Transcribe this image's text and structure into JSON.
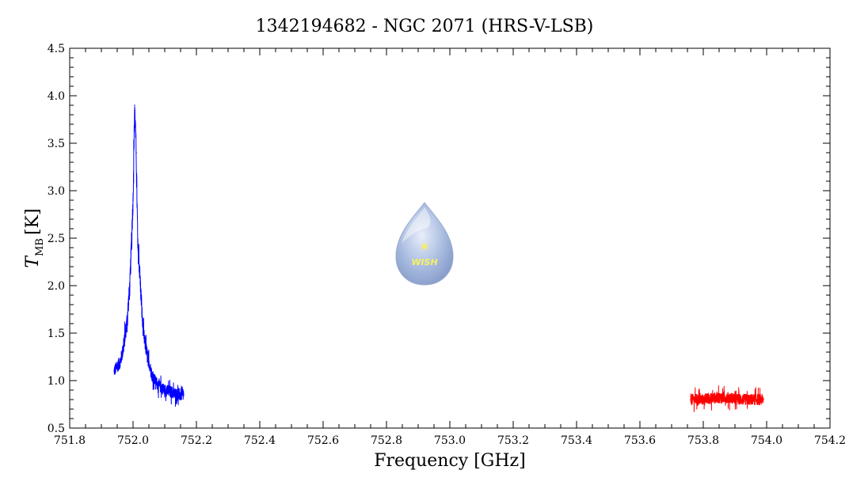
{
  "chart_data": {
    "type": "line",
    "title": "1342194682 - NGC 2071 (HRS-V-LSB)",
    "xlabel": "Frequency [GHz]",
    "ylabel": {
      "symbol": "T",
      "subscript": "MB",
      "unit": "[K]"
    },
    "xlim": [
      751.8,
      754.2
    ],
    "ylim": [
      0.5,
      4.5
    ],
    "x_ticks": [
      "751.8",
      "752.0",
      "752.2",
      "752.4",
      "752.6",
      "752.8",
      "753.0",
      "753.2",
      "753.4",
      "753.6",
      "753.8",
      "754.0",
      "754.2"
    ],
    "y_ticks": [
      "0.5",
      "1.0",
      "1.5",
      "2.0",
      "2.5",
      "3.0",
      "3.5",
      "4.0",
      "4.5"
    ],
    "grid": false,
    "series": [
      {
        "color": "#0000ff",
        "x": [
          751.94,
          751.96,
          751.97,
          751.98,
          751.99,
          752.0,
          752.005,
          752.01,
          752.015,
          752.02,
          752.025,
          752.03,
          752.035,
          752.04,
          752.05,
          752.06,
          752.07,
          752.08,
          752.1,
          752.12,
          752.14,
          752.16
        ],
        "y": [
          1.1,
          1.2,
          1.35,
          1.6,
          2.0,
          2.9,
          3.9,
          3.4,
          2.4,
          2.2,
          1.9,
          1.6,
          1.45,
          1.35,
          1.2,
          1.05,
          1.0,
          0.95,
          0.9,
          0.88,
          0.85,
          0.85
        ]
      },
      {
        "color": "#ff0000",
        "x": [
          753.76,
          753.8,
          753.84,
          753.88,
          753.92,
          753.96,
          753.99
        ],
        "y": [
          0.8,
          0.8,
          0.82,
          0.82,
          0.8,
          0.8,
          0.8
        ]
      }
    ]
  },
  "logo": {
    "text": "WISH"
  }
}
